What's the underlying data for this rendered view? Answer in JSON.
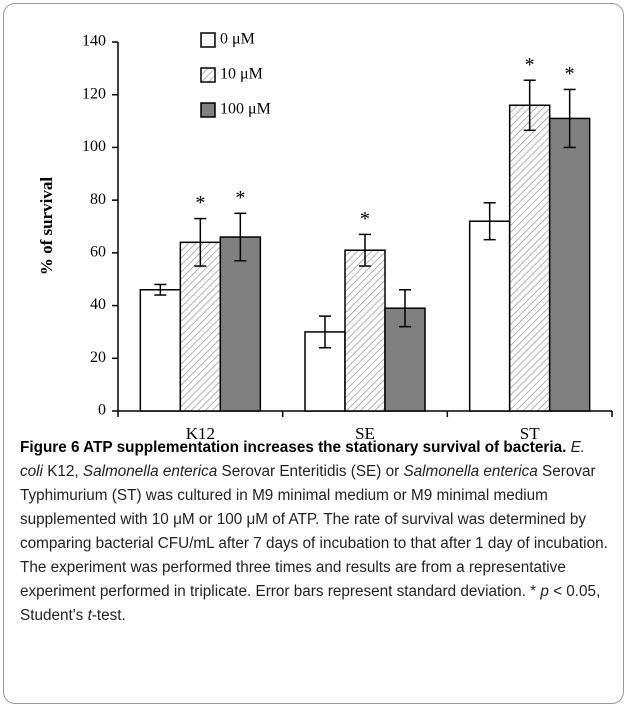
{
  "chart_data": {
    "type": "bar",
    "ylabel": "% of survival",
    "categories": [
      "K12",
      "SE",
      "ST"
    ],
    "series": [
      {
        "name": "0 μM",
        "color": "#ffffff",
        "fill_pattern": "none",
        "values": [
          46,
          30,
          72
        ],
        "errors": [
          2,
          6,
          7
        ],
        "value_labels": [
          null,
          null,
          null
        ]
      },
      {
        "name": "10 μM",
        "color": "#ffffff",
        "fill_pattern": "diagonal",
        "values": [
          64,
          61,
          116
        ],
        "errors": [
          9,
          6,
          9.5
        ],
        "value_labels": [
          "*",
          "*",
          "*"
        ]
      },
      {
        "name": "100 μM",
        "color": "#808080",
        "fill_pattern": "none",
        "values": [
          66,
          39,
          111
        ],
        "errors": [
          9,
          7,
          11
        ],
        "value_labels": [
          "*",
          null,
          "*"
        ]
      }
    ],
    "ylim": [
      0,
      140
    ],
    "yticks": [
      0,
      20,
      40,
      60,
      80,
      100,
      120,
      140
    ],
    "grid": false,
    "legend": "top"
  },
  "caption": {
    "title": "Figure 6 ATP supplementation increases the stationary survival of bacteria.",
    "body": [
      {
        "text": " ",
        "italic": false
      },
      {
        "text": "E. coli",
        "italic": true
      },
      {
        "text": " K12, ",
        "italic": false
      },
      {
        "text": "Salmonella enterica",
        "italic": true
      },
      {
        "text": " Serovar Enteritidis (SE) or ",
        "italic": false
      },
      {
        "text": "Salmonella enterica",
        "italic": true
      },
      {
        "text": " Serovar Typhimurium (ST) was cultured in M9 minimal medium or M9 minimal medium supplemented with 10 μM or 100 μM of ATP. The rate of survival was determined by comparing bacterial CFU/mL after 7 days of incubation to that after 1 day of incubation. The experiment was performed three times and results are from a representative experiment performed in triplicate. Error bars represent standard deviation. * ",
        "italic": false
      },
      {
        "text": "p",
        "italic": true
      },
      {
        "text": " < 0.05, Student's ",
        "italic": false
      },
      {
        "text": "t",
        "italic": true
      },
      {
        "text": "-test.",
        "italic": false
      }
    ]
  }
}
